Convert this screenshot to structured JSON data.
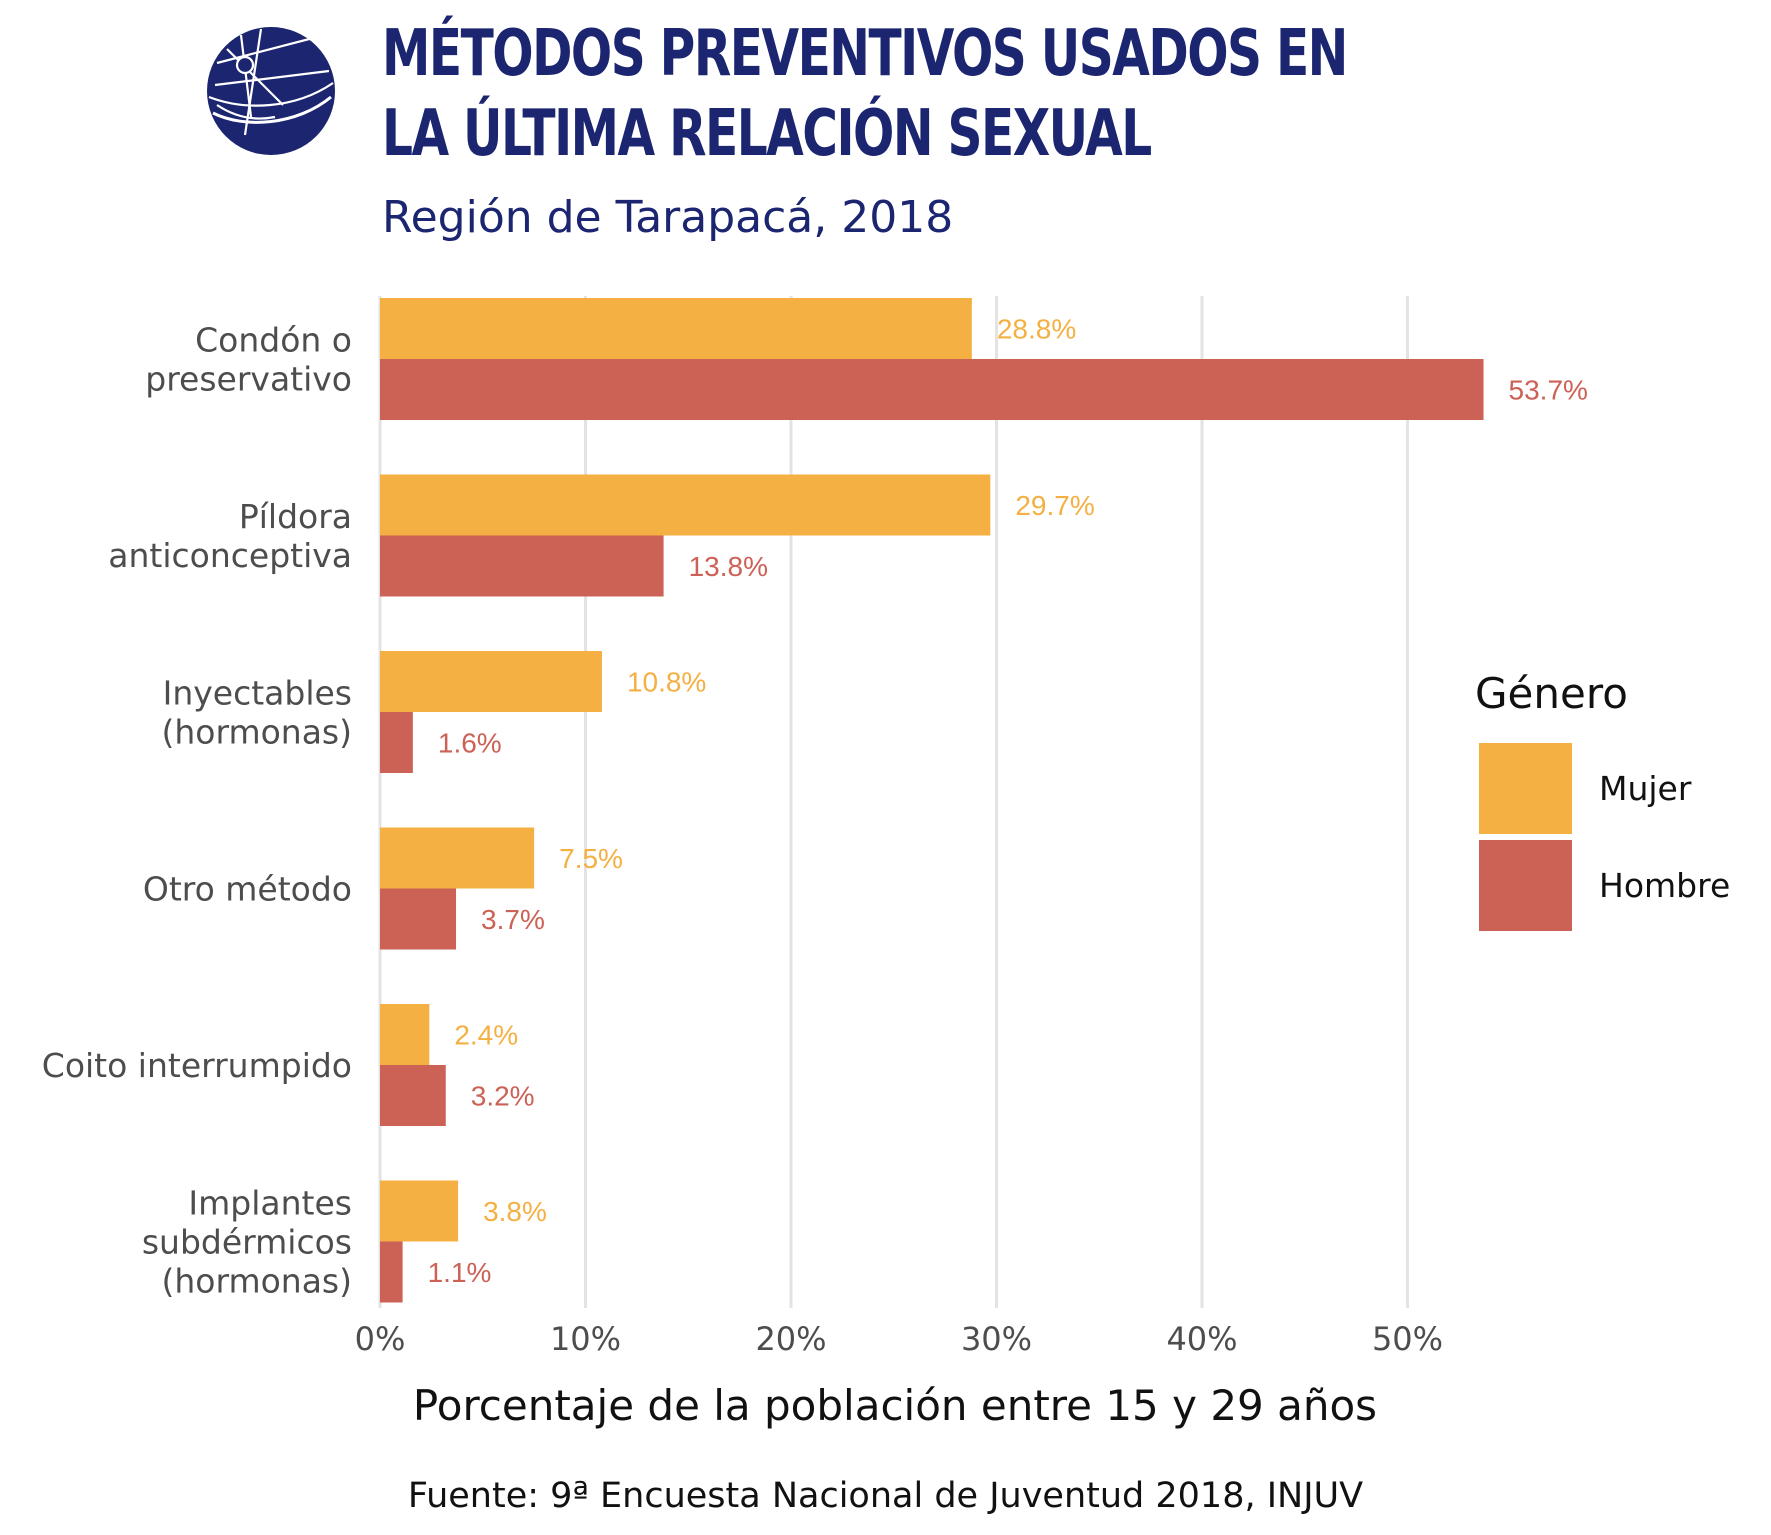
{
  "header": {
    "title_line1": "MÉTODOS PREVENTIVOS USADOS EN",
    "title_line2": "LA ÚLTIMA RELACIÓN SEXUAL",
    "subtitle": "Región de Tarapacá, 2018",
    "logo_icon": "injuv-logo-icon"
  },
  "caption": "Fuente: 9ª Encuesta Nacional de Juventud 2018, INJUV",
  "colors": {
    "mujer": "#f4b042",
    "hombre": "#cc6156",
    "title": "#1b2570",
    "grid": "#e3e3e3"
  },
  "chart_data": {
    "type": "bar",
    "orientation": "horizontal",
    "categories": [
      [
        "Condón o",
        "preservativo"
      ],
      [
        "Píldora",
        "anticonceptiva"
      ],
      [
        "Inyectables",
        "(hormonas)"
      ],
      [
        "Otro método"
      ],
      [
        "Coito interrumpido"
      ],
      [
        "Implantes",
        "subdérmicos",
        "(hormonas)"
      ]
    ],
    "series": [
      {
        "name": "Mujer",
        "values": [
          28.8,
          29.7,
          10.8,
          7.5,
          2.4,
          3.8
        ],
        "labels": [
          "28.8%",
          "29.7%",
          "10.8%",
          "7.5%",
          "2.4%",
          "3.8%"
        ]
      },
      {
        "name": "Hombre",
        "values": [
          53.7,
          13.8,
          1.6,
          3.7,
          3.2,
          1.1
        ],
        "labels": [
          "53.7%",
          "13.8%",
          "1.6%",
          "3.7%",
          "3.2%",
          "1.1%"
        ]
      }
    ],
    "xlabel": "Porcentaje de la población entre 15 y 29 años",
    "xlim": [
      0,
      55
    ],
    "xticks": [
      0,
      10,
      20,
      30,
      40,
      50
    ],
    "xtick_labels": [
      "0%",
      "10%",
      "20%",
      "30%",
      "40%",
      "50%"
    ],
    "grid": "vertical",
    "legend": {
      "title": "Género",
      "position": "right",
      "entries": [
        "Mujer",
        "Hombre"
      ]
    }
  }
}
